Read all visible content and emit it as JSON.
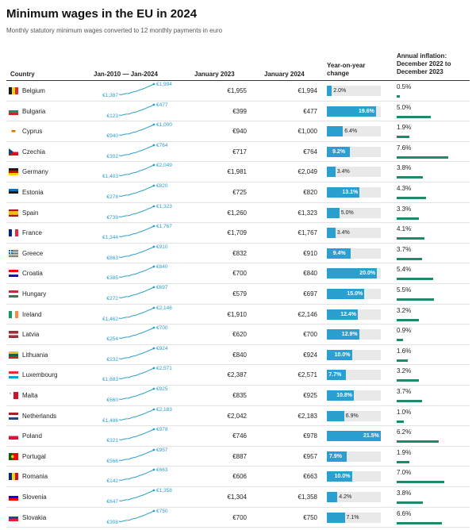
{
  "title": "Minimum wages in the EU in 2024",
  "subtitle": "Monthly statutory minimum wages converted to 12 monthly payments in euro",
  "headers": {
    "country": "Country",
    "trend": "Jan-2010 — Jan-2024",
    "jan2023": "January 2023",
    "jan2024": "January 2024",
    "yoy": [
      "Year-on-year",
      "change"
    ],
    "inflation": [
      "Annual inflation:",
      "December 2022 to",
      "December 2023"
    ]
  },
  "colors": {
    "yoy_bar": "#2b9fcf",
    "yoy_track": "#e9e9e9",
    "inflation_bar": "#1e8a6a",
    "sparkline": "#2b9fcf"
  },
  "chart_data": {
    "type": "table",
    "columns": [
      "Country",
      "Jan-2010 — Jan-2024",
      "January 2023",
      "January 2024",
      "Year-on-year change",
      "Annual inflation: December 2022 to December 2023"
    ],
    "yoy_max": 21.5,
    "inflation_max": 10,
    "rows": [
      {
        "country": "Belgium",
        "flag": "belgium-flag-icon",
        "start_label": "€1,387",
        "end_label": "€1,994",
        "start": 1387,
        "end": 1994,
        "jan2023": "€1,955",
        "jan2024": "€1,994",
        "yoy": 2.0,
        "yoy_label": "2.0%",
        "inflation": 0.5,
        "inflation_label": "0.5%"
      },
      {
        "country": "Bulgaria",
        "flag": "bulgaria-flag-icon",
        "start_label": "€123",
        "end_label": "€477",
        "start": 123,
        "end": 477,
        "jan2023": "€399",
        "jan2024": "€477",
        "yoy": 19.6,
        "yoy_label": "19.6%",
        "inflation": 5.0,
        "inflation_label": "5.0%"
      },
      {
        "country": "Cyprus",
        "flag": "cyprus-flag-icon",
        "start_label": "€940",
        "end_label": "€1,000",
        "start": 940,
        "end": 1000,
        "jan2023": "€940",
        "jan2024": "€1,000",
        "yoy": 6.4,
        "yoy_label": "6.4%",
        "inflation": 1.9,
        "inflation_label": "1.9%"
      },
      {
        "country": "Czechia",
        "flag": "czechia-flag-icon",
        "start_label": "€302",
        "end_label": "€764",
        "start": 302,
        "end": 764,
        "jan2023": "€717",
        "jan2024": "€764",
        "yoy": 9.2,
        "yoy_label": "9.2%",
        "inflation": 7.6,
        "inflation_label": "7.6%"
      },
      {
        "country": "Germany",
        "flag": "germany-flag-icon",
        "start_label": "€1,403",
        "end_label": "€2,049",
        "start": 1403,
        "end": 2049,
        "jan2023": "€1,981",
        "jan2024": "€2,049",
        "yoy": 3.4,
        "yoy_label": "3.4%",
        "inflation": 3.8,
        "inflation_label": "3.8%"
      },
      {
        "country": "Estonia",
        "flag": "estonia-flag-icon",
        "start_label": "€278",
        "end_label": "€820",
        "start": 278,
        "end": 820,
        "jan2023": "€725",
        "jan2024": "€820",
        "yoy": 13.1,
        "yoy_label": "13.1%",
        "inflation": 4.3,
        "inflation_label": "4.3%"
      },
      {
        "country": "Spain",
        "flag": "spain-flag-icon",
        "start_label": "€739",
        "end_label": "€1,323",
        "start": 739,
        "end": 1323,
        "jan2023": "€1,260",
        "jan2024": "€1,323",
        "yoy": 5.0,
        "yoy_label": "5.0%",
        "inflation": 3.3,
        "inflation_label": "3.3%"
      },
      {
        "country": "France",
        "flag": "france-flag-icon",
        "start_label": "€1,344",
        "end_label": "€1,767",
        "start": 1344,
        "end": 1767,
        "jan2023": "€1,709",
        "jan2024": "€1,767",
        "yoy": 3.4,
        "yoy_label": "3.4%",
        "inflation": 4.1,
        "inflation_label": "4.1%"
      },
      {
        "country": "Greece",
        "flag": "greece-flag-icon",
        "start_label": "€863",
        "end_label": "€910",
        "start": 863,
        "end": 910,
        "jan2023": "€832",
        "jan2024": "€910",
        "yoy": 9.4,
        "yoy_label": "9.4%",
        "inflation": 3.7,
        "inflation_label": "3.7%"
      },
      {
        "country": "Croatia",
        "flag": "croatia-flag-icon",
        "start_label": "€385",
        "end_label": "€840",
        "start": 385,
        "end": 840,
        "jan2023": "€700",
        "jan2024": "€840",
        "yoy": 20.0,
        "yoy_label": "20.0%",
        "inflation": 5.4,
        "inflation_label": "5.4%"
      },
      {
        "country": "Hungary",
        "flag": "hungary-flag-icon",
        "start_label": "€272",
        "end_label": "€697",
        "start": 272,
        "end": 697,
        "jan2023": "€579",
        "jan2024": "€697",
        "yoy": 15.0,
        "yoy_label": "15.0%",
        "inflation": 5.5,
        "inflation_label": "5.5%"
      },
      {
        "country": "Ireland",
        "flag": "ireland-flag-icon",
        "start_label": "€1,462",
        "end_label": "€2,146",
        "start": 1462,
        "end": 2146,
        "jan2023": "€1,910",
        "jan2024": "€2,146",
        "yoy": 12.4,
        "yoy_label": "12.4%",
        "inflation": 3.2,
        "inflation_label": "3.2%"
      },
      {
        "country": "Latvia",
        "flag": "latvia-flag-icon",
        "start_label": "€254",
        "end_label": "€700",
        "start": 254,
        "end": 700,
        "jan2023": "€620",
        "jan2024": "€700",
        "yoy": 12.9,
        "yoy_label": "12.9%",
        "inflation": 0.9,
        "inflation_label": "0.9%"
      },
      {
        "country": "Lithuania",
        "flag": "lithuania-flag-icon",
        "start_label": "€232",
        "end_label": "€924",
        "start": 232,
        "end": 924,
        "jan2023": "€840",
        "jan2024": "€924",
        "yoy": 10.0,
        "yoy_label": "10.0%",
        "inflation": 1.6,
        "inflation_label": "1.6%"
      },
      {
        "country": "Luxembourg",
        "flag": "luxembourg-flag-icon",
        "start_label": "€1,683",
        "end_label": "€2,571",
        "start": 1683,
        "end": 2571,
        "jan2023": "€2,387",
        "jan2024": "€2,571",
        "yoy": 7.7,
        "yoy_label": "7.7%",
        "inflation": 3.2,
        "inflation_label": "3.2%"
      },
      {
        "country": "Malta",
        "flag": "malta-flag-icon",
        "start_label": "€660",
        "end_label": "€925",
        "start": 660,
        "end": 925,
        "jan2023": "€835",
        "jan2024": "€925",
        "yoy": 10.8,
        "yoy_label": "10.8%",
        "inflation": 3.7,
        "inflation_label": "3.7%"
      },
      {
        "country": "Netherlands",
        "flag": "netherlands-flag-icon",
        "start_label": "€1,486",
        "end_label": "€2,183",
        "start": 1486,
        "end": 2183,
        "jan2023": "€2,042",
        "jan2024": "€2,183",
        "yoy": 6.9,
        "yoy_label": "6.9%",
        "inflation": 1.0,
        "inflation_label": "1.0%"
      },
      {
        "country": "Poland",
        "flag": "poland-flag-icon",
        "start_label": "€321",
        "end_label": "€978",
        "start": 321,
        "end": 978,
        "jan2023": "€746",
        "jan2024": "€978",
        "yoy": 21.5,
        "yoy_label": "21.5%",
        "inflation": 6.2,
        "inflation_label": "6.2%"
      },
      {
        "country": "Portugal",
        "flag": "portugal-flag-icon",
        "start_label": "€566",
        "end_label": "€957",
        "start": 566,
        "end": 957,
        "jan2023": "€887",
        "jan2024": "€957",
        "yoy": 7.9,
        "yoy_label": "7.9%",
        "inflation": 1.9,
        "inflation_label": "1.9%"
      },
      {
        "country": "Romania",
        "flag": "romania-flag-icon",
        "start_label": "€142",
        "end_label": "€663",
        "start": 142,
        "end": 663,
        "jan2023": "€606",
        "jan2024": "€663",
        "yoy": 10.0,
        "yoy_label": "10.0%",
        "inflation": 7.0,
        "inflation_label": "7.0%"
      },
      {
        "country": "Slovenia",
        "flag": "slovenia-flag-icon",
        "start_label": "€647",
        "end_label": "€1,358",
        "start": 647,
        "end": 1358,
        "jan2023": "€1,304",
        "jan2024": "€1,358",
        "yoy": 4.2,
        "yoy_label": "4.2%",
        "inflation": 3.8,
        "inflation_label": "3.8%"
      },
      {
        "country": "Slovakia",
        "flag": "slovakia-flag-icon",
        "start_label": "€308",
        "end_label": "€750",
        "start": 308,
        "end": 750,
        "jan2023": "€700",
        "jan2024": "€750",
        "yoy": 7.1,
        "yoy_label": "7.1%",
        "inflation": 6.6,
        "inflation_label": "6.6%"
      }
    ]
  }
}
